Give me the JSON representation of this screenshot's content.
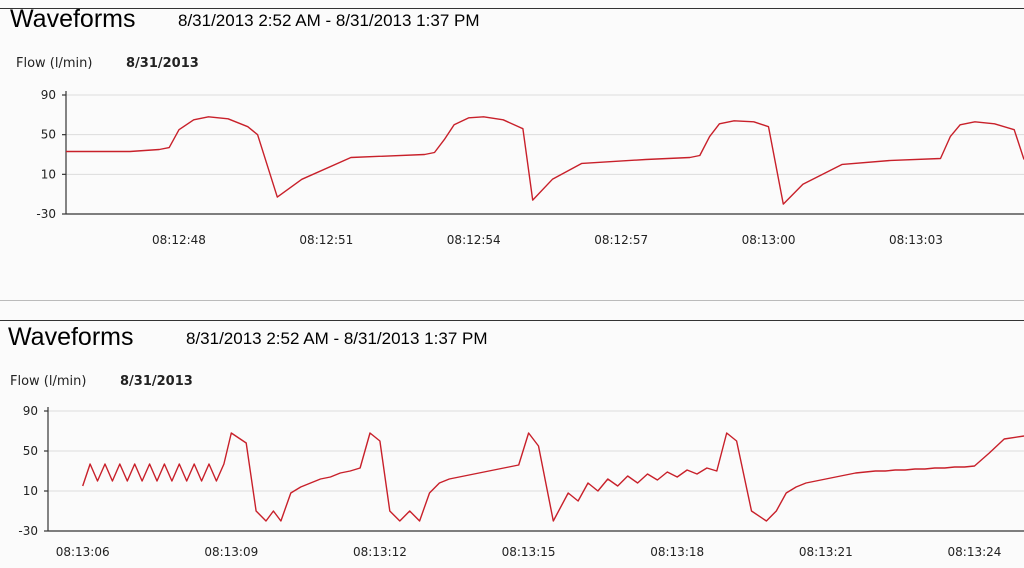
{
  "page": {
    "panels": [
      {
        "title": "Waveforms",
        "range": "8/31/2013 2:52 AM - 8/31/2013 1:37 PM",
        "series_label": "Flow (l/min)",
        "date": "8/31/2013"
      },
      {
        "title": "Waveforms",
        "range": "8/31/2013 2:52 AM - 8/31/2013 1:37 PM",
        "series_label": "Flow (l/min)",
        "date": "8/31/2013"
      }
    ]
  },
  "colors": {
    "trace": "#c8202a",
    "grid": "#dcdcdc"
  },
  "chart_data": [
    {
      "type": "line",
      "title": "Waveforms",
      "ylabel": "Flow (l/min)",
      "ylim": [
        -30,
        90
      ],
      "yticks": [
        90,
        50,
        10,
        -30
      ],
      "xlim": [
        "08:12:45.7",
        "08:13:05.2"
      ],
      "xticks": [
        "08:12:48",
        "08:12:51",
        "08:12:54",
        "08:12:57",
        "08:13:00",
        "08:13:03"
      ],
      "xtick_seconds": [
        48,
        51,
        54,
        57,
        60,
        63
      ],
      "grid": true,
      "series": [
        {
          "x_seconds": [
            45.7,
            47.0,
            47.6,
            47.8,
            48.0,
            48.3,
            48.6,
            49.0,
            49.4,
            49.6,
            50.0,
            50.5,
            51.5,
            53.0,
            53.2,
            53.4,
            53.6,
            53.9,
            54.2,
            54.6,
            55.0,
            55.2,
            55.6,
            56.2,
            57.5,
            58.4,
            58.6,
            58.8,
            59.0,
            59.3,
            59.7,
            60.0,
            60.3,
            60.7,
            61.5,
            62.5,
            63.5,
            63.7,
            63.9,
            64.2,
            64.6,
            65.0,
            65.2
          ],
          "y": [
            33,
            33,
            35,
            37,
            55,
            65,
            68,
            66,
            58,
            50,
            -13,
            5,
            27,
            30,
            32,
            45,
            60,
            67,
            68,
            65,
            56,
            -16,
            5,
            21,
            25,
            27,
            29,
            48,
            61,
            64,
            63,
            58,
            -20,
            0,
            20,
            24,
            26,
            48,
            60,
            63,
            61,
            55,
            25
          ]
        }
      ]
    },
    {
      "type": "line",
      "title": "Waveforms",
      "ylabel": "Flow (l/min)",
      "ylim": [
        -30,
        90
      ],
      "yticks": [
        90,
        50,
        10,
        -30
      ],
      "xlim": [
        "08:13:06",
        "08:13:25"
      ],
      "xticks": [
        "08:13:06",
        "08:13:09",
        "08:13:12",
        "08:13:15",
        "08:13:18",
        "08:13:21",
        "08:13:24"
      ],
      "xtick_seconds": [
        66,
        69,
        72,
        75,
        78,
        81,
        84
      ],
      "grid": true,
      "series": [
        {
          "x_seconds": [
            66.0,
            66.15,
            66.3,
            66.45,
            66.6,
            66.75,
            66.9,
            67.05,
            67.2,
            67.35,
            67.5,
            67.65,
            67.8,
            67.95,
            68.1,
            68.25,
            68.4,
            68.55,
            68.7,
            68.85,
            69.0,
            69.3,
            69.5,
            69.7,
            69.85,
            70.0,
            70.2,
            70.4,
            70.6,
            70.8,
            71.0,
            71.2,
            71.4,
            71.6,
            71.8,
            72.0,
            72.2,
            72.4,
            72.6,
            72.8,
            73.0,
            73.2,
            73.4,
            73.6,
            73.8,
            74.0,
            74.2,
            74.4,
            74.6,
            74.8,
            75.0,
            75.2,
            75.5,
            75.8,
            76.0,
            76.2,
            76.4,
            76.6,
            76.8,
            77.0,
            77.2,
            77.4,
            77.6,
            77.8,
            78.0,
            78.2,
            78.4,
            78.6,
            78.8,
            79.0,
            79.2,
            79.5,
            79.8,
            80.0,
            80.2,
            80.4,
            80.6,
            80.8,
            81.0,
            81.2,
            81.4,
            81.6,
            81.8,
            82.0,
            82.2,
            82.4,
            82.6,
            82.8,
            83.0,
            83.2,
            83.4,
            83.6,
            83.8,
            84.0,
            84.3,
            84.6,
            85.0
          ],
          "y": [
            15,
            37,
            20,
            37,
            20,
            37,
            20,
            37,
            20,
            37,
            20,
            37,
            20,
            37,
            20,
            37,
            20,
            37,
            20,
            37,
            68,
            58,
            -10,
            -20,
            -10,
            -20,
            8,
            14,
            18,
            22,
            24,
            28,
            30,
            33,
            68,
            60,
            -10,
            -20,
            -10,
            -20,
            8,
            18,
            22,
            24,
            26,
            28,
            30,
            32,
            34,
            36,
            68,
            55,
            -20,
            8,
            0,
            18,
            10,
            22,
            15,
            25,
            18,
            27,
            21,
            29,
            24,
            31,
            27,
            33,
            30,
            68,
            60,
            -10,
            -20,
            -10,
            8,
            14,
            18,
            20,
            22,
            24,
            26,
            28,
            29,
            30,
            30,
            31,
            31,
            32,
            32,
            33,
            33,
            34,
            34,
            35,
            48,
            62,
            65
          ]
        }
      ]
    }
  ]
}
